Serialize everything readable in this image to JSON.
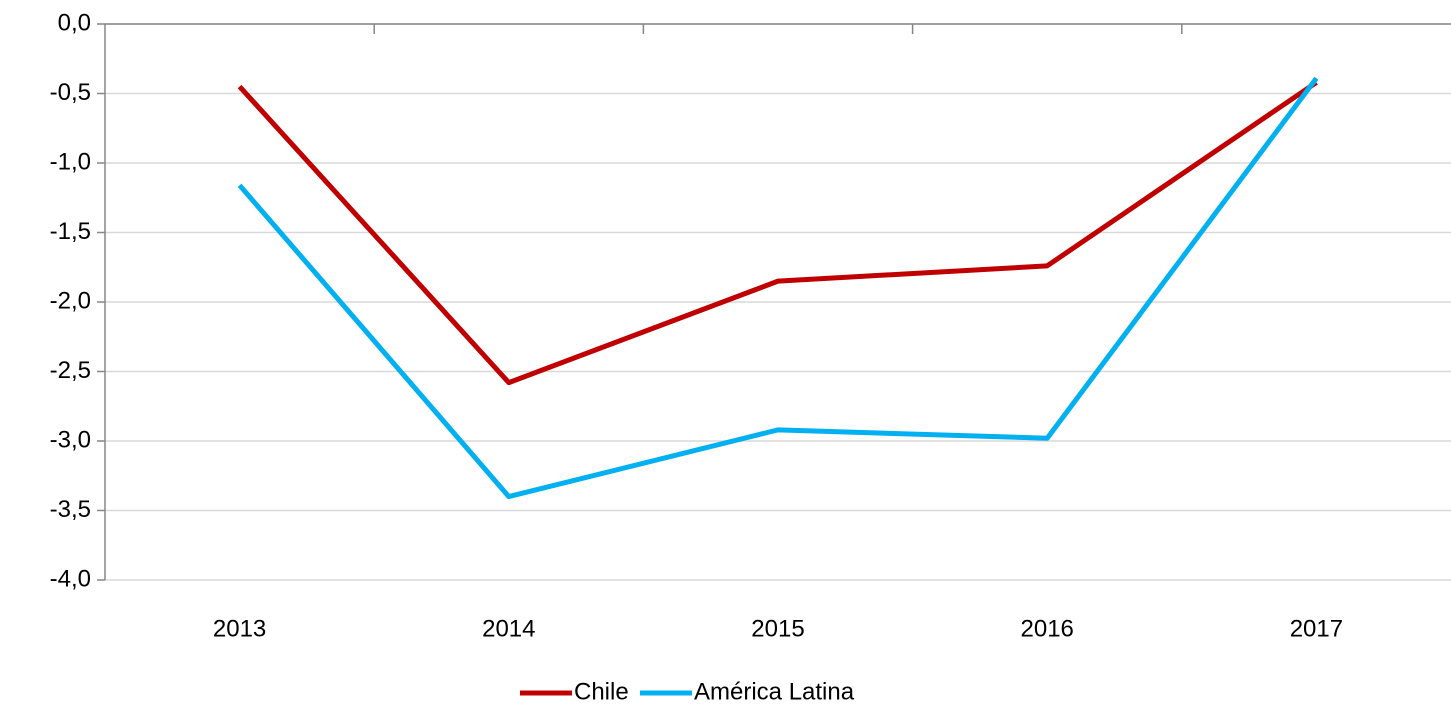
{
  "chart_data": {
    "type": "line",
    "categories": [
      "2013",
      "2014",
      "2015",
      "2016",
      "2017"
    ],
    "series": [
      {
        "name": "Chile",
        "color": "#c00000",
        "values": [
          -0.45,
          -2.58,
          -1.85,
          -1.74,
          -0.42
        ]
      },
      {
        "name": "América Latina",
        "color": "#00b0f0",
        "values": [
          -1.16,
          -3.4,
          -2.92,
          -2.98,
          -0.39
        ]
      }
    ],
    "ylim": [
      -4.0,
      0.0
    ],
    "yticks": [
      {
        "value": 0,
        "label": "0,0"
      },
      {
        "value": -0.5,
        "label": "-0,5"
      },
      {
        "value": -1,
        "label": "-1,0"
      },
      {
        "value": -1.5,
        "label": "-1,5"
      },
      {
        "value": -2,
        "label": "-2,0"
      },
      {
        "value": -2.5,
        "label": "-2,5"
      },
      {
        "value": -3,
        "label": "-3,0"
      },
      {
        "value": -3.5,
        "label": "-3,5"
      },
      {
        "value": -4,
        "label": "-4,0"
      }
    ],
    "grid": true,
    "legend": "bottom"
  }
}
